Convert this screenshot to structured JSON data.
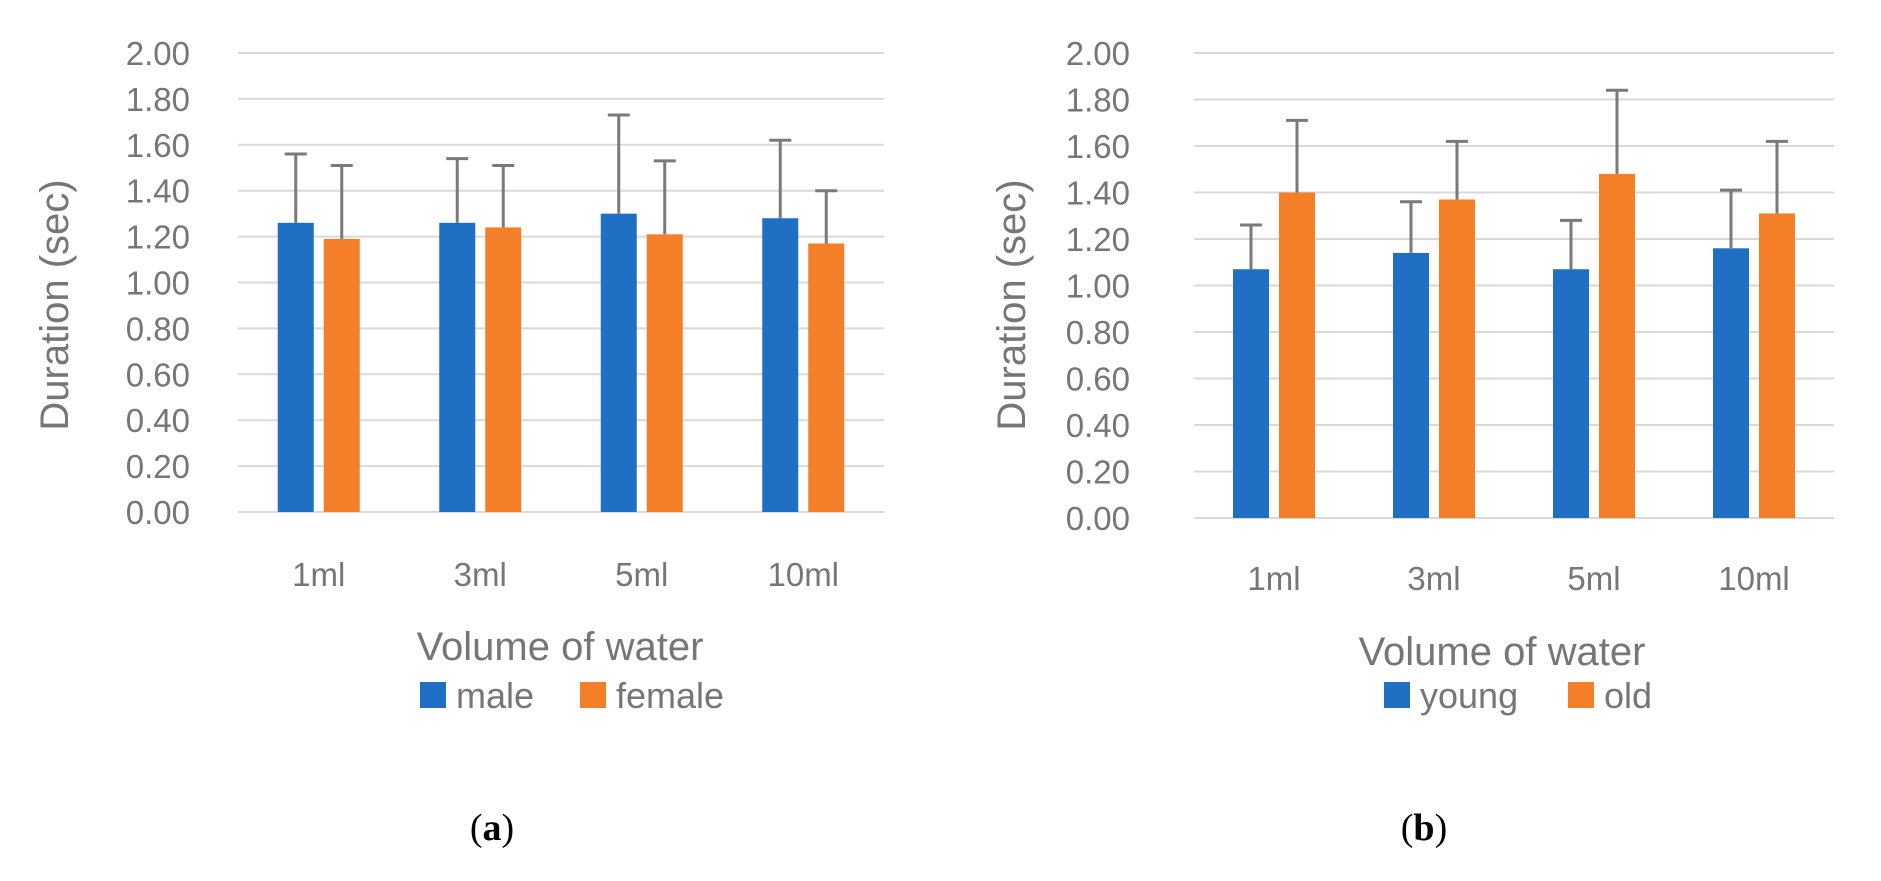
{
  "chart_data": [
    {
      "type": "bar",
      "panel_label": "a",
      "title": "",
      "xlabel": "Volume of water",
      "ylabel": "Duration (sec)",
      "ylim": [
        0,
        2
      ],
      "y_ticks": [
        "0.00",
        "0.20",
        "0.40",
        "0.60",
        "0.80",
        "1.00",
        "1.20",
        "1.40",
        "1.60",
        "1.80",
        "2.00"
      ],
      "categories": [
        "1ml",
        "3ml",
        "5ml",
        "10ml"
      ],
      "grid": true,
      "legend_position": "bottom",
      "series": [
        {
          "name": "male",
          "color": "#1f6fc5",
          "values": [
            1.26,
            1.26,
            1.3,
            1.28
          ],
          "errors": [
            0.3,
            0.28,
            0.43,
            0.34
          ]
        },
        {
          "name": "female",
          "color": "#f47f28",
          "values": [
            1.19,
            1.24,
            1.21,
            1.17
          ],
          "errors": [
            0.32,
            0.27,
            0.32,
            0.23
          ]
        }
      ]
    },
    {
      "type": "bar",
      "panel_label": "b",
      "title": "",
      "xlabel": "Volume of water",
      "ylabel": "Duration (sec)",
      "ylim": [
        0,
        2
      ],
      "y_ticks": [
        "0.00",
        "0.20",
        "0.40",
        "0.60",
        "0.80",
        "1.00",
        "1.20",
        "1.40",
        "1.60",
        "1.80",
        "2.00"
      ],
      "categories": [
        "1ml",
        "3ml",
        "5ml",
        "10ml"
      ],
      "grid": true,
      "legend_position": "bottom",
      "series": [
        {
          "name": "young",
          "color": "#1f6fc5",
          "values": [
            1.07,
            1.14,
            1.07,
            1.16
          ],
          "errors": [
            0.19,
            0.22,
            0.21,
            0.25
          ]
        },
        {
          "name": "old",
          "color": "#f47f28",
          "values": [
            1.4,
            1.37,
            1.48,
            1.31
          ],
          "errors": [
            0.31,
            0.25,
            0.36,
            0.31
          ]
        }
      ]
    }
  ]
}
